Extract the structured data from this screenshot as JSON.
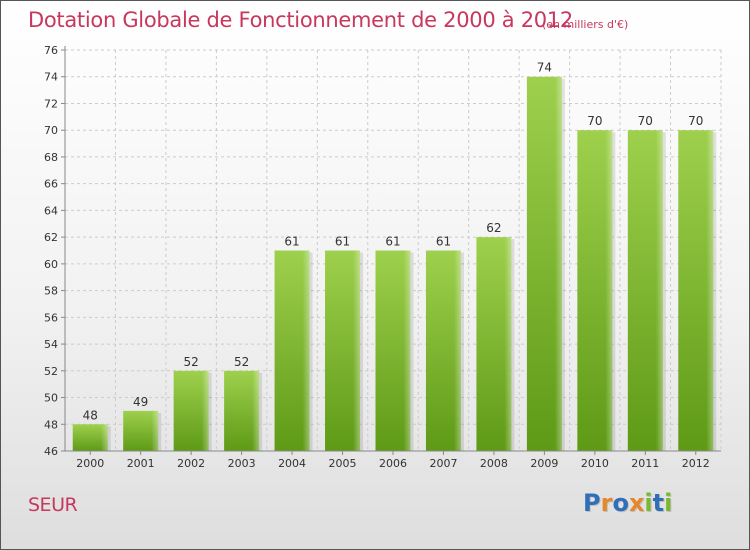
{
  "title": "Dotation Globale de Fonctionnement de 2000 à 2012",
  "unit": "(en milliers d'€)",
  "commune": "SEUR",
  "logo": {
    "text": "Proxiti",
    "letter_colors": [
      "#2f6fb8",
      "#e5872d",
      "#2f6fb8",
      "#e5872d",
      "#7ab832",
      "#2f6fb8",
      "#7ab832"
    ]
  },
  "colors": {
    "title": "#c8375d",
    "bar_top": "#9ed04d",
    "bar_bottom": "#5e9a16",
    "grid": "#cccccc",
    "text": "#333333"
  },
  "chart_data": {
    "type": "bar",
    "title": "Dotation Globale de Fonctionnement de 2000 à 2012",
    "xlabel": "",
    "ylabel": "",
    "categories": [
      "2000",
      "2001",
      "2002",
      "2003",
      "2004",
      "2005",
      "2006",
      "2007",
      "2008",
      "2009",
      "2010",
      "2011",
      "2012"
    ],
    "values": [
      48,
      49,
      52,
      52,
      61,
      61,
      61,
      61,
      62,
      74,
      70,
      70,
      70
    ],
    "ylim": [
      46,
      76
    ],
    "ytick_step": 2,
    "grid": true,
    "legend": "none",
    "data_labels": true
  }
}
